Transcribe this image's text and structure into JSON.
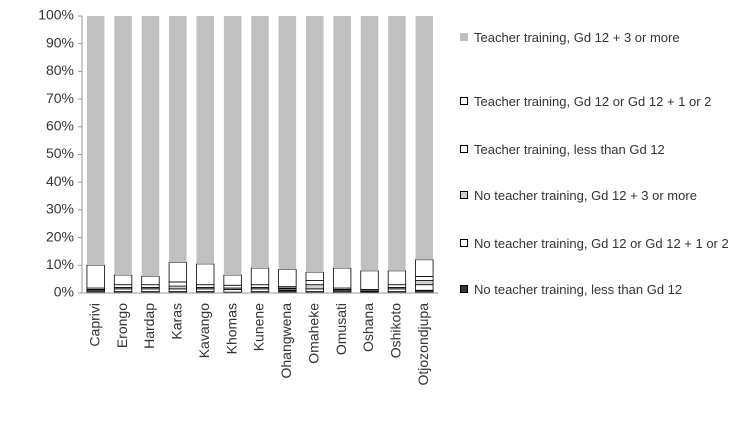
{
  "chart_data": {
    "type": "stacked-bar",
    "categories": [
      "Caprivi",
      "Erongo",
      "Hardap",
      "Karas",
      "Kavango",
      "Khomas",
      "Kunene",
      "Ohangwena",
      "Omaheke",
      "Omusati",
      "Oshana",
      "Oshikoto",
      "Otjozondjupa"
    ],
    "series": [
      {
        "name": "No teacher training, less than Gd 12",
        "color": "#333333",
        "values": [
          0.5,
          0.5,
          0.5,
          0.5,
          0.5,
          0.3,
          0.5,
          1,
          0.5,
          0.5,
          0.3,
          0.5,
          1
        ]
      },
      {
        "name": "No teacher training, Gd 12 or Gd 12 + 1 or 2",
        "color": "#ffffff",
        "values": [
          0.5,
          1,
          1,
          1,
          1,
          1,
          1,
          0.5,
          1,
          0.5,
          0.3,
          1,
          2
        ]
      },
      {
        "name": "No teacher training, Gd 12 + 3 or more",
        "color": "#d0d0d0",
        "values": [
          0.3,
          0.5,
          0.5,
          1,
          0.5,
          0.5,
          0.5,
          0.3,
          1.5,
          0.3,
          0.2,
          0.5,
          1.5
        ]
      },
      {
        "name": "Teacher training, less than Gd 12",
        "color": "#ffffff",
        "values": [
          0.5,
          1,
          1,
          1.5,
          1,
          1,
          1,
          0.5,
          1.5,
          0.5,
          0.5,
          1,
          1.5
        ]
      },
      {
        "name": "Teacher training, Gd 12 or Gd 12 + 1 or 2",
        "color": "#ffffff",
        "values": [
          8.2,
          3.5,
          3,
          7,
          7.5,
          3.7,
          6,
          6.2,
          3,
          7.2,
          6.7,
          5,
          6
        ]
      },
      {
        "name": "Teacher training, Gd 12 + 3 or more",
        "color": "#c0c0c0",
        "values": [
          90,
          93.5,
          94,
          89,
          89.5,
          93.5,
          91,
          91.5,
          92.5,
          91,
          92,
          92,
          88
        ]
      }
    ],
    "ylim": [
      0,
      100
    ],
    "yticks": [
      {
        "value": 0,
        "label": "0%"
      },
      {
        "value": 10,
        "label": "10%"
      },
      {
        "value": 20,
        "label": "20%"
      },
      {
        "value": 30,
        "label": "30%"
      },
      {
        "value": 40,
        "label": "40%"
      },
      {
        "value": 50,
        "label": "50%"
      },
      {
        "value": 60,
        "label": "60%"
      },
      {
        "value": 70,
        "label": "70%"
      },
      {
        "value": 80,
        "label": "80%"
      },
      {
        "value": 90,
        "label": "90%"
      },
      {
        "value": 100,
        "label": "100%"
      }
    ],
    "legend": "right"
  }
}
